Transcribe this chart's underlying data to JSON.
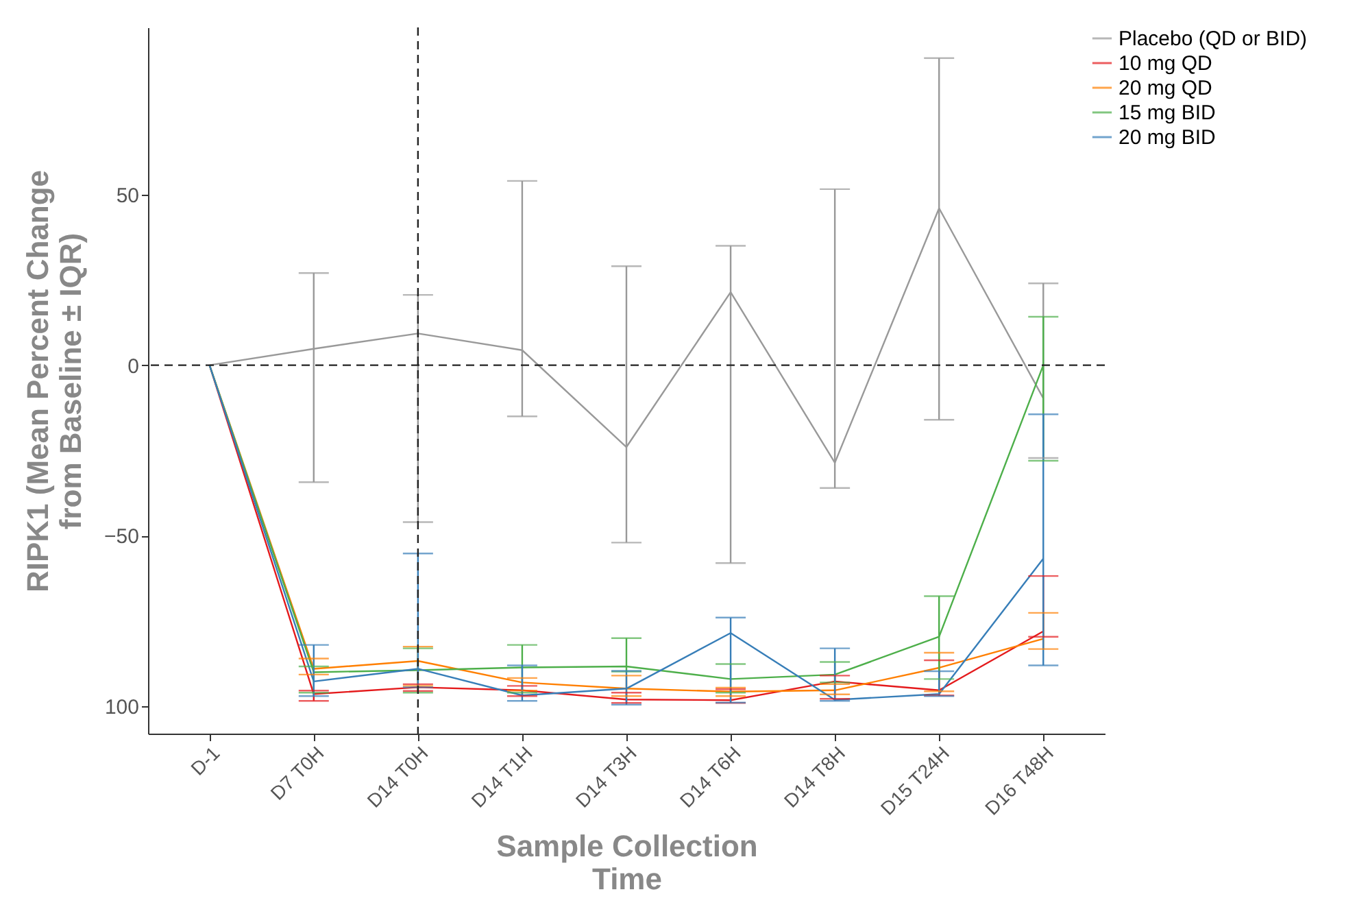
{
  "chart_data": {
    "type": "line",
    "xlabel": "Sample Collection\nTime",
    "ylabel": "RIPK1 (Mean Percent Change\nfrom Baseline ± IQR)",
    "categories": [
      "D-1",
      "D7 T0H",
      "D14 T0H",
      "D14 T1H",
      "D14 T3H",
      "D14 T6H",
      "D14 T8H",
      "D15 T24H",
      "D16 T48H"
    ],
    "ylim": [
      -108,
      99
    ],
    "yticks": [
      50,
      0,
      -50,
      {
        "value": -100,
        "label": "100"
      }
    ],
    "grid": false,
    "legend": "top right",
    "marker": "none",
    "line_style": "solid",
    "ref_lines": [
      {
        "axis": "y",
        "value": 0,
        "line_style": "dashed"
      },
      {
        "axis": "x",
        "value": "D14 T0H",
        "line_style": "dashed"
      }
    ],
    "series": [
      {
        "name": "Placebo (QD or BID)",
        "color": "#999999",
        "values": [
          0,
          4.8,
          9.3,
          4.4,
          -24,
          21.4,
          -28.6,
          46,
          -9.7
        ],
        "errors": [
          null,
          [
            -34.3,
            27
          ],
          [
            -46,
            20.6
          ],
          [
            -15,
            54
          ],
          [
            -52,
            29
          ],
          [
            -58,
            35
          ],
          [
            -36,
            51.6
          ],
          [
            -16,
            90
          ],
          [
            -27.2,
            24
          ]
        ]
      },
      {
        "name": "10 mg QD",
        "color": "#e41a1c",
        "values": [
          0,
          -96.4,
          -94.4,
          -95.3,
          -98,
          -98.2,
          -92.7,
          -95.3,
          -78
        ],
        "errors": [
          null,
          [
            -98.4,
            -95.4
          ],
          [
            -95.5,
            -93.5
          ],
          [
            -97,
            -94
          ],
          [
            -99,
            -96
          ],
          [
            -99,
            -95
          ],
          [
            -97.8,
            -91
          ],
          [
            -96.8,
            -86.5
          ],
          [
            -79.6,
            -61.8
          ]
        ]
      },
      {
        "name": "20 mg QD",
        "color": "#ff7f00",
        "values": [
          0,
          -89,
          -86.7,
          -93,
          -94.8,
          -95.7,
          -95.3,
          -88.7,
          -80.2
        ],
        "errors": [
          null,
          [
            -90.7,
            -86
          ],
          [
            -94,
            -82.5
          ],
          [
            -95.4,
            -91.7
          ],
          [
            -97,
            -91
          ],
          [
            -97,
            -94.5
          ],
          [
            -96.5,
            -93.5
          ],
          [
            -95.6,
            -84.3
          ],
          [
            -83.2,
            -72.6
          ]
        ]
      },
      {
        "name": "15 mg BID",
        "color": "#4daf4a",
        "values": [
          0,
          -90,
          -89.4,
          -88.6,
          -88.3,
          -92,
          -90.7,
          -79.6,
          0
        ],
        "errors": [
          null,
          [
            -96,
            -88.3
          ],
          [
            -96,
            -83
          ],
          [
            -96,
            -82
          ],
          [
            -89.8,
            -80
          ],
          [
            -96,
            -87.6
          ],
          [
            -93,
            -87
          ],
          [
            -92,
            -67.7
          ],
          [
            -28,
            14.2
          ]
        ]
      },
      {
        "name": "20 mg BID",
        "color": "#377eb8",
        "values": [
          0,
          -92.7,
          -89,
          -96.8,
          -94.8,
          -78.5,
          -98.1,
          -96.4,
          -56.7
        ],
        "errors": [
          null,
          [
            -97,
            -82
          ],
          [
            -94.4,
            -55.2
          ],
          [
            -98.4,
            -88
          ],
          [
            -99.5,
            -89.6
          ],
          [
            -98.9,
            -74
          ],
          [
            -98.4,
            -83
          ],
          [
            -97,
            -89.7
          ],
          [
            -88,
            -14.4
          ]
        ]
      }
    ]
  }
}
